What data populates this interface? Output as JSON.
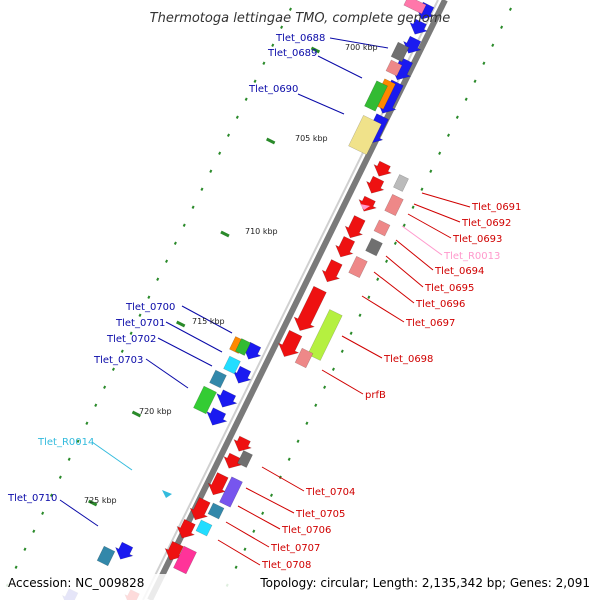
{
  "title": "Thermotoga lettingae TMO, complete genome",
  "footer": {
    "accession": "Accession: NC_009828",
    "topology": "Topology: circular; Length: 2,135,342 bp; Genes: 2,091"
  },
  "scale_labels": [
    "700 kbp",
    "705 kbp",
    "710 kbp",
    "715 kbp",
    "720 kbp",
    "725 kbp"
  ],
  "colors": {
    "backbone": "#808080",
    "tick": "#2a8a2a",
    "left_label": "#0a0aa8",
    "right_label": "#d00000",
    "rna_right": "#ff99cc",
    "rna_left": "#33bbdd"
  },
  "gene_labels": [
    {
      "text": "Tlet_0688",
      "side": "left"
    },
    {
      "text": "Tlet_0689",
      "side": "left"
    },
    {
      "text": "Tlet_0690",
      "side": "left"
    },
    {
      "text": "Tlet_0691",
      "side": "right"
    },
    {
      "text": "Tlet_0692",
      "side": "right"
    },
    {
      "text": "Tlet_0693",
      "side": "right"
    },
    {
      "text": "Tlet_R0013",
      "side": "right",
      "rna": true
    },
    {
      "text": "Tlet_0694",
      "side": "right"
    },
    {
      "text": "Tlet_0695",
      "side": "right"
    },
    {
      "text": "Tlet_0696",
      "side": "right"
    },
    {
      "text": "Tlet_0697",
      "side": "right"
    },
    {
      "text": "Tlet_0700",
      "side": "left"
    },
    {
      "text": "Tlet_0701",
      "side": "left"
    },
    {
      "text": "Tlet_0702",
      "side": "left"
    },
    {
      "text": "Tlet_0703",
      "side": "left"
    },
    {
      "text": "Tlet_0698",
      "side": "right"
    },
    {
      "text": "prfB",
      "side": "right"
    },
    {
      "text": "Tlet_R0014",
      "side": "left",
      "rna": true
    },
    {
      "text": "Tlet_0710",
      "side": "left"
    },
    {
      "text": "Tlet_0704",
      "side": "right"
    },
    {
      "text": "Tlet_0705",
      "side": "right"
    },
    {
      "text": "Tlet_0706",
      "side": "right"
    },
    {
      "text": "Tlet_0707",
      "side": "right"
    },
    {
      "text": "Tlet_0708",
      "side": "right"
    }
  ]
}
